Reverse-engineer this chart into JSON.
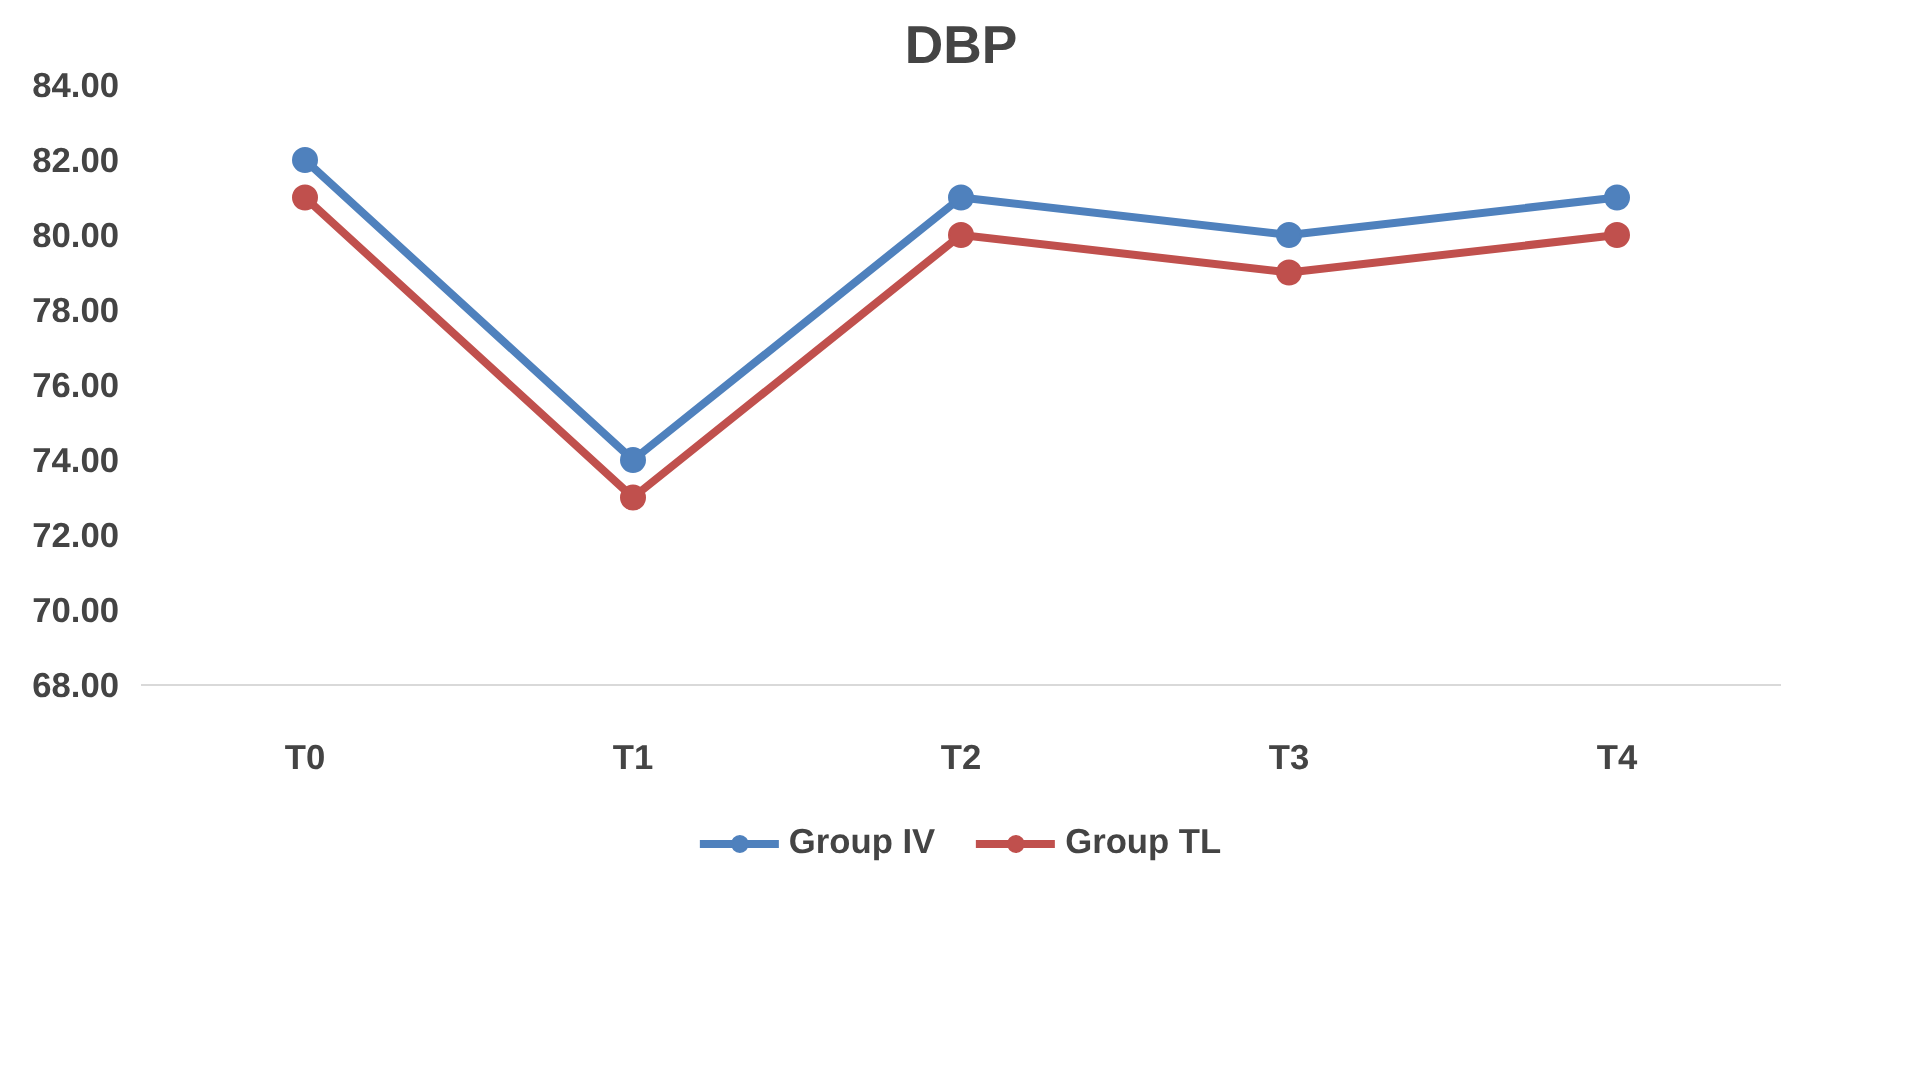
{
  "chart_data": {
    "type": "line",
    "title": "DBP",
    "categories": [
      "T0",
      "T1",
      "T2",
      "T3",
      "T4"
    ],
    "series": [
      {
        "name": "Group IV",
        "color": "#4f81bd",
        "values": [
          82,
          74,
          81,
          80,
          81
        ]
      },
      {
        "name": "Group TL",
        "color": "#c0504d",
        "values": [
          81,
          73,
          80,
          79,
          80
        ]
      }
    ],
    "ylim": [
      68,
      84
    ],
    "yticks": [
      {
        "value": 68,
        "label": "68.00"
      },
      {
        "value": 70,
        "label": "70.00"
      },
      {
        "value": 72,
        "label": "72.00"
      },
      {
        "value": 74,
        "label": "74.00"
      },
      {
        "value": 76,
        "label": "76.00"
      },
      {
        "value": 78,
        "label": "78.00"
      },
      {
        "value": 80,
        "label": "80.00"
      },
      {
        "value": 82,
        "label": "82.00"
      },
      {
        "value": 84,
        "label": "84.00"
      }
    ],
    "grid": false,
    "legend": "bottom",
    "marker": "circle",
    "line_style": "solid"
  }
}
